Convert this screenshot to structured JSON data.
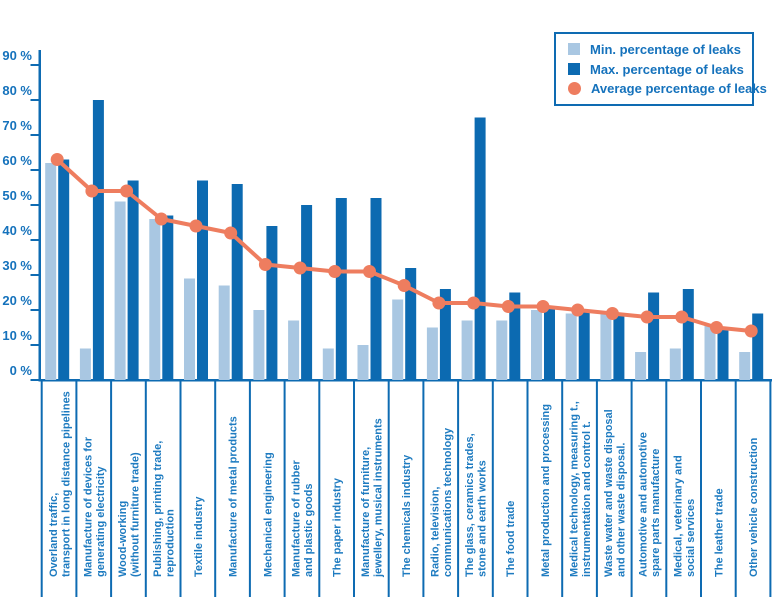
{
  "chart_data": {
    "type": "bar",
    "title": "",
    "xlabel": "",
    "ylabel": "",
    "ylim": [
      0,
      90
    ],
    "ytick_step": 10,
    "ytick_suffix": " %",
    "grid": false,
    "legend_position": "top-right",
    "axis_color": "#0E6BB2",
    "text_color": "#1572BC",
    "category_label_color": "#1E7BC0",
    "categories": [
      "Overland traffic,\ntransport in long distance pipelines",
      "Manufacture of devices for\ngenerating electricity",
      "Wood-working\n(without furniture trade)",
      "Publishing, printing trade,\nreproduction",
      "Textile industry",
      "Manufacture of metal products",
      "Mechanical engineering",
      "Manufacture of rubber\nand plastic goods",
      "The paper industry",
      "Manufacture of furniture,\njewellery, musical instruments",
      "The chemicals industry",
      "Radio, television,\ncommunications technology",
      "The glass, ceramics trades,\nstone and earth works",
      "The food trade",
      "Metal production and processing",
      "Medical technology, measuring t.,\ninstrumentation and control t.",
      "Waste water and waste disposal\nand other waste disposal.",
      "Automotive and automotive\nspare parts manufacture",
      "Medical, veterinary and\nsocial services",
      "The leather trade",
      "Other vehicle construction"
    ],
    "series": [
      {
        "name": "Min. percentage of leaks",
        "type": "bar",
        "color": "#A9C7E2",
        "values": [
          62,
          9,
          51,
          46,
          29,
          27,
          20,
          17,
          9,
          10,
          23,
          15,
          17,
          17,
          20,
          19,
          19,
          8,
          9,
          16,
          8
        ]
      },
      {
        "name": "Max. percentage of leaks",
        "type": "bar",
        "color": "#0C6AB1",
        "values": [
          63,
          80,
          57,
          47,
          57,
          56,
          44,
          50,
          52,
          52,
          32,
          26,
          75,
          25,
          21,
          20,
          19,
          25,
          26,
          15,
          19
        ]
      },
      {
        "name": "Average percentage of leaks",
        "type": "line",
        "color": "#EE7D5F",
        "values": [
          63,
          54,
          54,
          46,
          44,
          42,
          33,
          32,
          31,
          31,
          27,
          22,
          22,
          21,
          21,
          20,
          19,
          18,
          18,
          15,
          14
        ]
      }
    ]
  }
}
